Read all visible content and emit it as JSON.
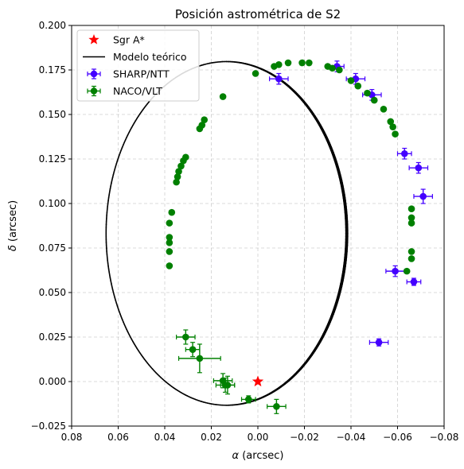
{
  "chart_data": {
    "type": "scatter",
    "title": "Posición astrométrica de S2",
    "xlabel_symbol": "α",
    "xlabel_unit": "(arcsec)",
    "ylabel_symbol": "δ",
    "ylabel_unit": "(arcsec)",
    "xlim": [
      0.08,
      -0.08
    ],
    "ylim": [
      -0.025,
      0.2
    ],
    "x_ticks": [
      "0.08",
      "0.06",
      "0.04",
      "0.02",
      "0.00",
      "−0.02",
      "−0.04",
      "−0.06",
      "−0.08"
    ],
    "x_tick_values": [
      0.08,
      0.06,
      0.04,
      0.02,
      0.0,
      -0.02,
      -0.04,
      -0.06,
      -0.08
    ],
    "y_ticks": [
      "−0.025",
      "0.000",
      "0.025",
      "0.050",
      "0.075",
      "0.100",
      "0.125",
      "0.150",
      "0.175",
      "0.200"
    ],
    "y_tick_values": [
      -0.025,
      0.0,
      0.025,
      0.05,
      0.075,
      0.1,
      0.125,
      0.15,
      0.175,
      0.2
    ],
    "grid": true,
    "legend_position": "top-left",
    "legend": [
      {
        "label": "Sgr A*",
        "kind": "star",
        "color": "#ff0000"
      },
      {
        "label": "Modelo teórico",
        "kind": "line",
        "color": "#000000"
      },
      {
        "label": "SHARP/NTT",
        "kind": "errorbar",
        "color": "#4400ff"
      },
      {
        "label": "NACO/VLT",
        "kind": "errorbar",
        "color": "#008000"
      }
    ],
    "sgr_a": {
      "x": 0.0,
      "y": 0.0
    },
    "model": {
      "type": "ellipse",
      "center_x": 0.0135,
      "center_y": 0.0832,
      "semi_x": 0.0517,
      "semi_y": 0.0965
    },
    "series": [
      {
        "name": "SHARP/NTT",
        "color": "#4400ff",
        "points": [
          {
            "x": -0.009,
            "y": 0.17,
            "xerr": 0.004,
            "yerr": 0.003
          },
          {
            "x": -0.034,
            "y": 0.177,
            "xerr": 0.003,
            "yerr": 0.003
          },
          {
            "x": -0.042,
            "y": 0.17,
            "xerr": 0.004,
            "yerr": 0.003
          },
          {
            "x": -0.049,
            "y": 0.161,
            "xerr": 0.004,
            "yerr": 0.003
          },
          {
            "x": -0.063,
            "y": 0.128,
            "xerr": 0.003,
            "yerr": 0.003
          },
          {
            "x": -0.069,
            "y": 0.12,
            "xerr": 0.004,
            "yerr": 0.003
          },
          {
            "x": -0.071,
            "y": 0.104,
            "xerr": 0.004,
            "yerr": 0.004
          },
          {
            "x": -0.059,
            "y": 0.062,
            "xerr": 0.004,
            "yerr": 0.003
          },
          {
            "x": -0.067,
            "y": 0.056,
            "xerr": 0.003,
            "yerr": 0.002
          },
          {
            "x": -0.052,
            "y": 0.022,
            "xerr": 0.004,
            "yerr": 0.002
          }
        ]
      },
      {
        "name": "NACO/VLT",
        "color": "#008000",
        "points": [
          {
            "x": 0.038,
            "y": 0.065,
            "xerr": 0.0005,
            "yerr": 0.001
          },
          {
            "x": 0.038,
            "y": 0.073,
            "xerr": 0.0005,
            "yerr": 0.001
          },
          {
            "x": 0.038,
            "y": 0.078,
            "xerr": 0.0005,
            "yerr": 0.001
          },
          {
            "x": 0.038,
            "y": 0.081,
            "xerr": 0.0005,
            "yerr": 0.001
          },
          {
            "x": 0.038,
            "y": 0.089,
            "xerr": 0.0005,
            "yerr": 0.001
          },
          {
            "x": 0.037,
            "y": 0.095,
            "xerr": 0.0005,
            "yerr": 0.001
          },
          {
            "x": 0.035,
            "y": 0.112,
            "xerr": 0.0005,
            "yerr": 0.001
          },
          {
            "x": 0.0345,
            "y": 0.115,
            "xerr": 0.0005,
            "yerr": 0.001
          },
          {
            "x": 0.034,
            "y": 0.118,
            "xerr": 0.0005,
            "yerr": 0.001
          },
          {
            "x": 0.033,
            "y": 0.121,
            "xerr": 0.0005,
            "yerr": 0.001
          },
          {
            "x": 0.032,
            "y": 0.124,
            "xerr": 0.0005,
            "yerr": 0.001
          },
          {
            "x": 0.031,
            "y": 0.126,
            "xerr": 0.0005,
            "yerr": 0.001
          },
          {
            "x": 0.025,
            "y": 0.142,
            "xerr": 0.0005,
            "yerr": 0.001
          },
          {
            "x": 0.024,
            "y": 0.144,
            "xerr": 0.0005,
            "yerr": 0.001
          },
          {
            "x": 0.023,
            "y": 0.147,
            "xerr": 0.0005,
            "yerr": 0.001
          },
          {
            "x": 0.015,
            "y": 0.16,
            "xerr": 0.0005,
            "yerr": 0.001
          },
          {
            "x": 0.001,
            "y": 0.173,
            "xerr": 0.0005,
            "yerr": 0.001
          },
          {
            "x": -0.007,
            "y": 0.177,
            "xerr": 0.0005,
            "yerr": 0.001
          },
          {
            "x": -0.009,
            "y": 0.178,
            "xerr": 0.0005,
            "yerr": 0.001
          },
          {
            "x": -0.013,
            "y": 0.179,
            "xerr": 0.0005,
            "yerr": 0.001
          },
          {
            "x": -0.019,
            "y": 0.179,
            "xerr": 0.0005,
            "yerr": 0.001
          },
          {
            "x": -0.022,
            "y": 0.179,
            "xerr": 0.0005,
            "yerr": 0.001
          },
          {
            "x": -0.03,
            "y": 0.177,
            "xerr": 0.0005,
            "yerr": 0.001
          },
          {
            "x": -0.032,
            "y": 0.176,
            "xerr": 0.0005,
            "yerr": 0.001
          },
          {
            "x": -0.035,
            "y": 0.175,
            "xerr": 0.0005,
            "yerr": 0.001
          },
          {
            "x": -0.04,
            "y": 0.169,
            "xerr": 0.0005,
            "yerr": 0.001
          },
          {
            "x": -0.043,
            "y": 0.166,
            "xerr": 0.0005,
            "yerr": 0.001
          },
          {
            "x": -0.047,
            "y": 0.162,
            "xerr": 0.0005,
            "yerr": 0.001
          },
          {
            "x": -0.05,
            "y": 0.158,
            "xerr": 0.0005,
            "yerr": 0.001
          },
          {
            "x": -0.054,
            "y": 0.153,
            "xerr": 0.0005,
            "yerr": 0.001
          },
          {
            "x": -0.057,
            "y": 0.146,
            "xerr": 0.0005,
            "yerr": 0.001
          },
          {
            "x": -0.058,
            "y": 0.143,
            "xerr": 0.0005,
            "yerr": 0.001
          },
          {
            "x": -0.059,
            "y": 0.139,
            "xerr": 0.0005,
            "yerr": 0.001
          },
          {
            "x": -0.066,
            "y": 0.097,
            "xerr": 0.0005,
            "yerr": 0.001
          },
          {
            "x": -0.066,
            "y": 0.092,
            "xerr": 0.0005,
            "yerr": 0.001
          },
          {
            "x": -0.066,
            "y": 0.089,
            "xerr": 0.0005,
            "yerr": 0.001
          },
          {
            "x": -0.066,
            "y": 0.073,
            "xerr": 0.0005,
            "yerr": 0.001
          },
          {
            "x": -0.066,
            "y": 0.069,
            "xerr": 0.0005,
            "yerr": 0.001
          },
          {
            "x": -0.064,
            "y": 0.062,
            "xerr": 0.0005,
            "yerr": 0.001
          },
          {
            "x": 0.031,
            "y": 0.025,
            "xerr": 0.004,
            "yerr": 0.004
          },
          {
            "x": 0.028,
            "y": 0.018,
            "xerr": 0.003,
            "yerr": 0.004
          },
          {
            "x": 0.025,
            "y": 0.013,
            "xerr": 0.009,
            "yerr": 0.008
          },
          {
            "x": 0.015,
            "y": 0.0005,
            "xerr": 0.004,
            "yerr": 0.004
          },
          {
            "x": 0.014,
            "y": -0.002,
            "xerr": 0.004,
            "yerr": 0.004
          },
          {
            "x": 0.013,
            "y": -0.002,
            "xerr": 0.003,
            "yerr": 0.005
          },
          {
            "x": 0.004,
            "y": -0.01,
            "xerr": 0.003,
            "yerr": 0.002
          },
          {
            "x": -0.008,
            "y": -0.014,
            "xerr": 0.004,
            "yerr": 0.004
          }
        ]
      }
    ]
  }
}
